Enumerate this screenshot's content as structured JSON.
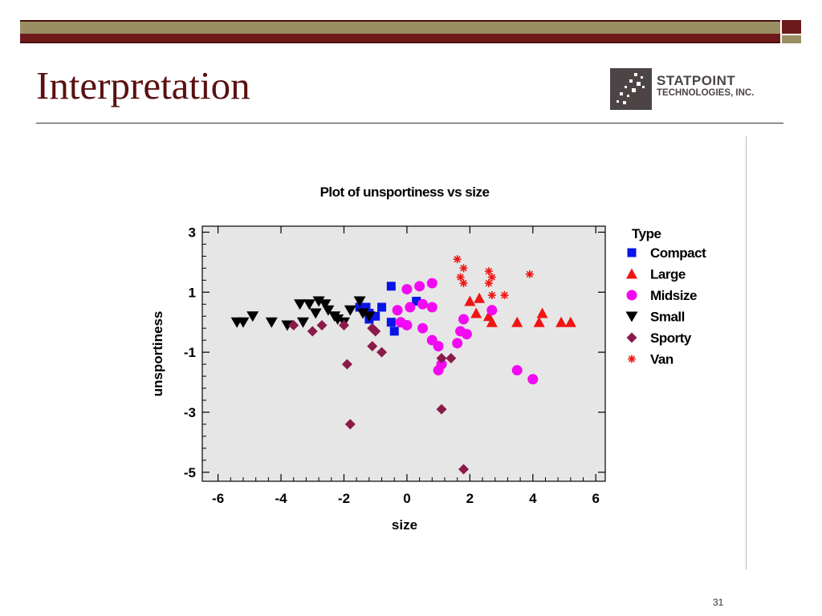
{
  "slide": {
    "title": "Interpretation",
    "page_number": "31",
    "logo": {
      "line1": "STATPOINT",
      "line2": "TECHNOLOGIES, INC."
    }
  },
  "colors": {
    "title": "#5a1010",
    "plot_bg": "#e6e6e6"
  },
  "chart_data": {
    "type": "scatter",
    "title": "Plot of unsportiness vs size",
    "xlabel": "size",
    "ylabel": "unsportiness",
    "xlim": [
      -6.5,
      6.3
    ],
    "ylim": [
      -5.3,
      3.2
    ],
    "xticks": [
      -6,
      -4,
      -2,
      0,
      2,
      4,
      6
    ],
    "yticks": [
      -5,
      -3,
      -1,
      1,
      3
    ],
    "grid": false,
    "legend_title": "Type",
    "legend_position": "right",
    "series": [
      {
        "name": "Compact",
        "color": "#0a14e6",
        "marker": "square",
        "points": [
          [
            -0.5,
            1.2
          ],
          [
            -1.5,
            0.5
          ],
          [
            -1.3,
            0.5
          ],
          [
            -1.2,
            0.3
          ],
          [
            -1.0,
            0.2
          ],
          [
            -0.8,
            0.5
          ],
          [
            -1.2,
            0.1
          ],
          [
            -0.5,
            0.0
          ],
          [
            -0.4,
            -0.3
          ],
          [
            0.3,
            0.7
          ]
        ]
      },
      {
        "name": "Large",
        "color": "#f01414",
        "marker": "triangle-up",
        "points": [
          [
            2.0,
            0.7
          ],
          [
            2.3,
            0.8
          ],
          [
            2.2,
            0.3
          ],
          [
            2.6,
            0.2
          ],
          [
            2.7,
            0.0
          ],
          [
            3.5,
            0.0
          ],
          [
            4.2,
            0.0
          ],
          [
            4.3,
            0.3
          ],
          [
            4.9,
            0.0
          ],
          [
            5.2,
            0.0
          ]
        ]
      },
      {
        "name": "Midsize",
        "color": "#f20af2",
        "marker": "circle",
        "points": [
          [
            0.0,
            1.1
          ],
          [
            0.4,
            1.2
          ],
          [
            0.8,
            1.3
          ],
          [
            -0.3,
            0.4
          ],
          [
            0.1,
            0.5
          ],
          [
            0.5,
            0.6
          ],
          [
            0.8,
            0.5
          ],
          [
            -0.2,
            0.0
          ],
          [
            0.0,
            -0.1
          ],
          [
            0.5,
            -0.2
          ],
          [
            0.8,
            -0.6
          ],
          [
            1.0,
            -0.8
          ],
          [
            1.1,
            -1.4
          ],
          [
            1.0,
            -1.6
          ],
          [
            1.7,
            -0.3
          ],
          [
            1.9,
            -0.4
          ],
          [
            1.6,
            -0.7
          ],
          [
            1.8,
            0.1
          ],
          [
            2.7,
            0.4
          ],
          [
            3.5,
            -1.6
          ],
          [
            4.0,
            -1.9
          ]
        ]
      },
      {
        "name": "Small",
        "color": "#000000",
        "marker": "triangle-down",
        "points": [
          [
            -5.4,
            0.0
          ],
          [
            -5.2,
            0.0
          ],
          [
            -4.9,
            0.2
          ],
          [
            -4.3,
            0.0
          ],
          [
            -3.8,
            -0.1
          ],
          [
            -3.3,
            0.0
          ],
          [
            -3.4,
            0.6
          ],
          [
            -3.1,
            0.6
          ],
          [
            -2.9,
            0.3
          ],
          [
            -2.8,
            0.7
          ],
          [
            -2.6,
            0.6
          ],
          [
            -2.5,
            0.4
          ],
          [
            -2.3,
            0.2
          ],
          [
            -2.2,
            0.1
          ],
          [
            -2.0,
            0.0
          ],
          [
            -1.8,
            0.4
          ],
          [
            -1.5,
            0.7
          ],
          [
            -1.4,
            0.3
          ],
          [
            -1.2,
            0.2
          ]
        ]
      },
      {
        "name": "Sporty",
        "color": "#8b1a4a",
        "marker": "diamond",
        "points": [
          [
            -3.6,
            -0.1
          ],
          [
            -3.0,
            -0.3
          ],
          [
            -2.7,
            -0.1
          ],
          [
            -2.0,
            -0.1
          ],
          [
            -1.1,
            -0.2
          ],
          [
            -1.0,
            -0.3
          ],
          [
            -1.1,
            -0.8
          ],
          [
            -0.8,
            -1.0
          ],
          [
            -1.9,
            -1.4
          ],
          [
            -1.8,
            -3.4
          ],
          [
            1.1,
            -1.2
          ],
          [
            1.4,
            -1.2
          ],
          [
            1.1,
            -2.9
          ],
          [
            1.8,
            -4.9
          ]
        ]
      },
      {
        "name": "Van",
        "color": "#f01414",
        "marker": "asterisk",
        "points": [
          [
            1.6,
            2.1
          ],
          [
            1.8,
            1.8
          ],
          [
            1.7,
            1.5
          ],
          [
            1.8,
            1.3
          ],
          [
            2.6,
            1.7
          ],
          [
            2.7,
            1.5
          ],
          [
            2.6,
            1.3
          ],
          [
            2.7,
            0.9
          ],
          [
            3.1,
            0.9
          ],
          [
            3.9,
            1.6
          ]
        ]
      }
    ]
  }
}
